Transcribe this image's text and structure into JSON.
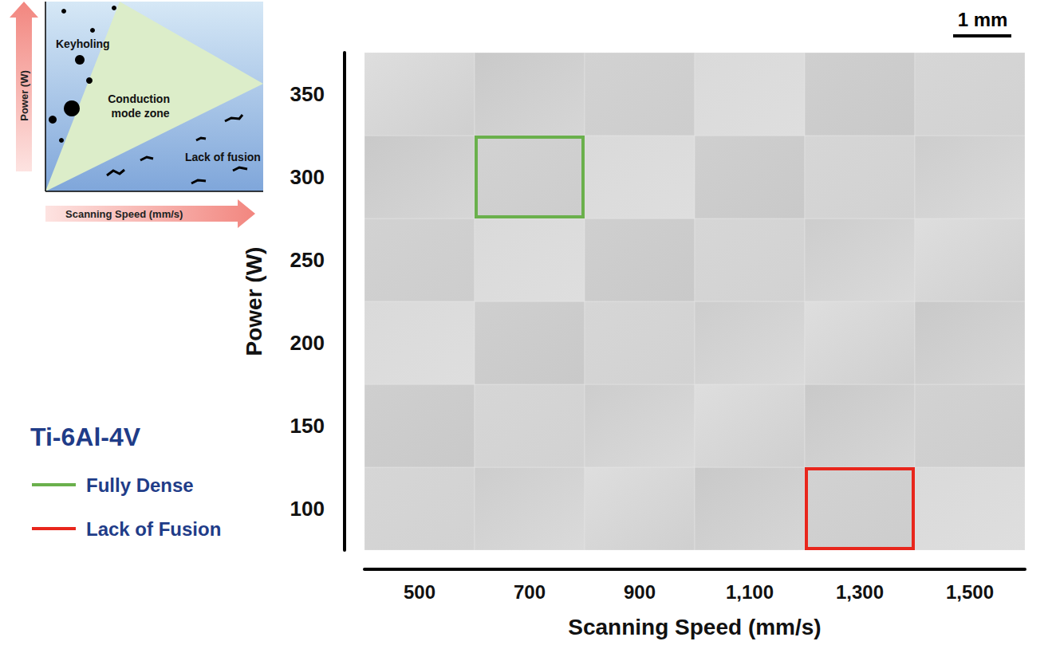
{
  "chart_data": {
    "type": "grid",
    "title": "Ti-6Al-4V",
    "x_label": "Scanning Speed (mm/s)",
    "y_label": "Power (W)",
    "xlim": [
      400,
      1600
    ],
    "xticks": [
      500,
      700,
      900,
      1100,
      1300,
      1500
    ],
    "ylim": [
      75,
      375
    ],
    "yticks": [
      100,
      150,
      200,
      250,
      300,
      350
    ],
    "scale_bar": "1 mm",
    "series": [
      {
        "name": "Fully Dense",
        "color": "#6ab04c",
        "cells": [
          [
            700,
            300
          ]
        ]
      },
      {
        "name": "Lack of Fusion",
        "color": "#e8261c",
        "cells": [
          [
            1300,
            100
          ]
        ]
      }
    ],
    "inset": {
      "x_label": "Scanning Speed (mm/s)",
      "y_label": "Power (W)",
      "regions": [
        "Keyholing",
        "Conduction mode zone",
        "Lack of fusion"
      ]
    }
  }
}
